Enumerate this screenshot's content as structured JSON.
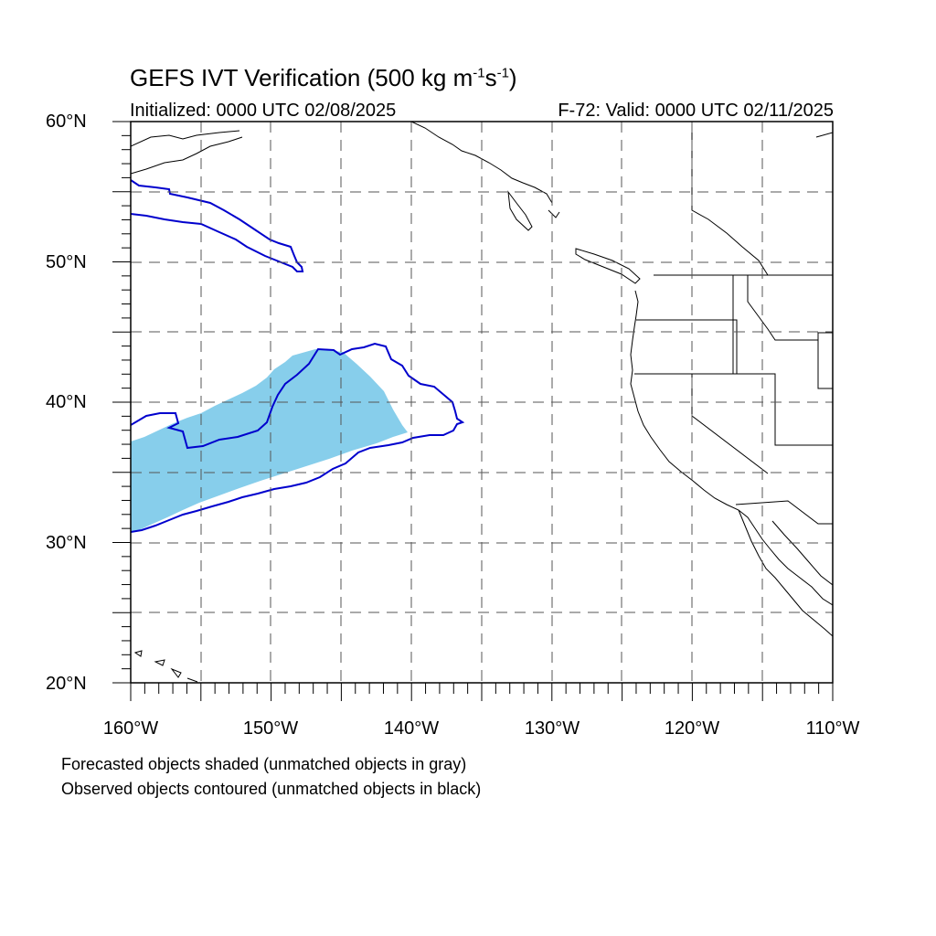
{
  "title": {
    "prefix": "GEFS IVT Verification (500 kg m",
    "sup1": "-1",
    "mid": "s",
    "sup2": "-1",
    "suffix": ")"
  },
  "initialized": "Initialized: 0000 UTC 02/08/2025",
  "valid": "F-72: Valid: 0000 UTC 02/11/2025",
  "axes": {
    "lat_labels": [
      "60°N",
      "50°N",
      "40°N",
      "30°N",
      "20°N"
    ],
    "lon_labels": [
      "160°W",
      "150°W",
      "140°W",
      "130°W",
      "120°W",
      "110°W"
    ],
    "lat_range": [
      20,
      60
    ],
    "lon_range": [
      -160,
      -110
    ]
  },
  "notes": [
    "Forecasted objects shaded (unmatched objects in gray)",
    "Observed objects contoured (unmatched objects in black)"
  ],
  "colors": {
    "forecast_fill": "#87ceeb",
    "observed_contour": "#0000cd",
    "coast": "#000000",
    "grid": "#555555"
  }
}
